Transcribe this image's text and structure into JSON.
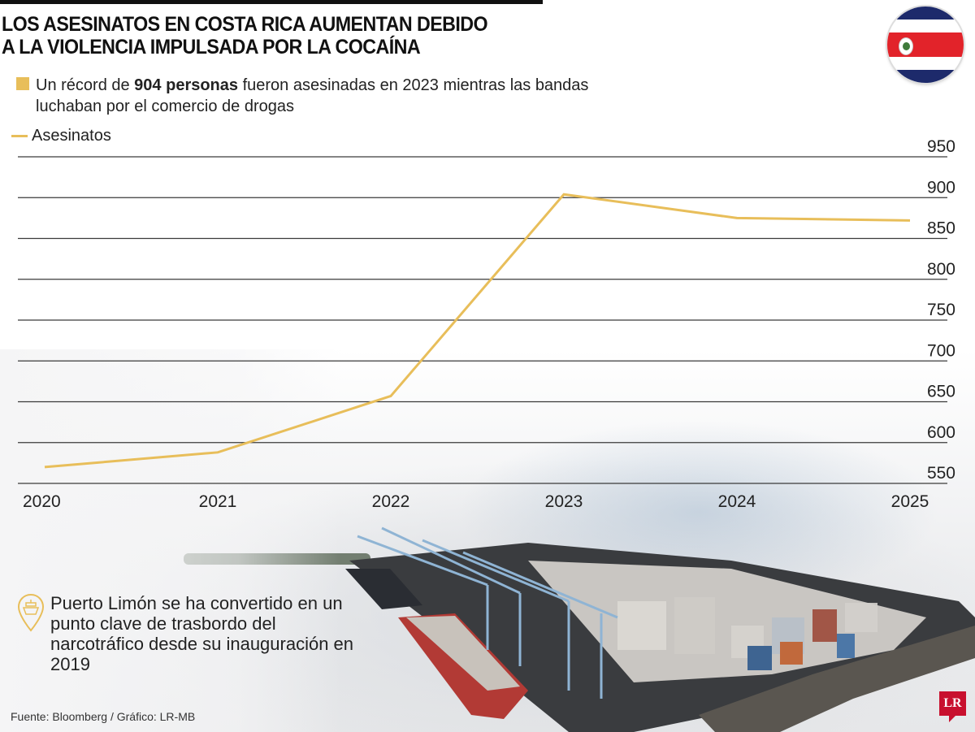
{
  "header": {
    "title_line1": "LOS ASESINATOS EN COSTA RICA AUMENTAN DEBIDO",
    "title_line2": "A LA VIOLENCIA IMPULSADA POR LA COCAÍNA",
    "subtitle_pre": "Un récord de ",
    "subtitle_bold": "904 personas",
    "subtitle_post": " fueron asesinadas en 2023 mientras las bandas luchaban por el comercio de drogas",
    "accent_color": "#E8BE5A",
    "flag": "costa-rica-flag-icon"
  },
  "legend": {
    "label": "Asesinatos",
    "color": "#E8BE5A"
  },
  "chart_data": {
    "type": "line",
    "title": "Los asesinatos en Costa Rica aumentan debido a la violencia impulsada por la cocaína",
    "subtitle": "Un récord de 904 personas fueron asesinadas en 2023 mientras las bandas luchaban por el comercio de drogas",
    "categories": [
      "2020",
      "2021",
      "2022",
      "2023",
      "2024",
      "2025"
    ],
    "series": [
      {
        "name": "Asesinatos",
        "values": [
          570,
          588,
          657,
          904,
          875,
          872
        ],
        "color": "#E8BE5A"
      }
    ],
    "xlabel": "",
    "ylabel": "",
    "yticks": [
      550,
      600,
      650,
      700,
      750,
      800,
      850,
      900,
      950
    ],
    "ylim": [
      550,
      950
    ],
    "grid": true,
    "yaxis_position": "right",
    "legend_position": "top-left"
  },
  "annotation": {
    "icon": "ship-location-pin-icon",
    "text": "Puerto Limón se ha convertido en un punto clave de trasbordo del narcotráfico desde su inauguración en 2019"
  },
  "footer": {
    "source": "Fuente:  Bloomberg  / Gráfico: LR-MB",
    "logo": "LR"
  }
}
